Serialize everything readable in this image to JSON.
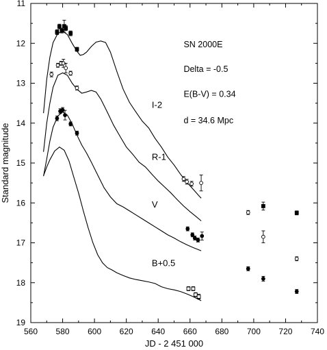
{
  "chart_data": {
    "type": "scatter",
    "title": "",
    "xlabel": "JD - 2 451 000",
    "ylabel": "Standard magnitude",
    "xlim": [
      560,
      740
    ],
    "ylim": [
      11,
      19
    ],
    "y_inverted": true,
    "x_ticks": [
      560,
      580,
      600,
      620,
      640,
      660,
      680,
      700,
      720,
      740
    ],
    "y_ticks": [
      11,
      12,
      13,
      14,
      15,
      16,
      17,
      18,
      19
    ],
    "grid": false,
    "annotations": [
      {
        "text": "SN 2000E",
        "x": 656,
        "y": 12.1
      },
      {
        "text": "Delta = -0.5",
        "x": 656,
        "y": 12.72
      },
      {
        "text": "E(B-V) = 0.34",
        "x": 656,
        "y": 13.34
      },
      {
        "text": "d = 34.6 Mpc",
        "x": 656,
        "y": 14.0
      }
    ],
    "series": [
      {
        "label": "I-2",
        "label_pos": {
          "x": 636,
          "y": 13.62
        },
        "marker": "filled-square",
        "points": [
          {
            "x": 576.5,
            "y": 11.72,
            "err": 0.06
          },
          {
            "x": 578.0,
            "y": 11.58,
            "err": 0.06
          },
          {
            "x": 579.5,
            "y": 11.68,
            "err": 0.06
          },
          {
            "x": 581.0,
            "y": 11.57,
            "err": 0.15
          },
          {
            "x": 582.0,
            "y": 11.62,
            "err": 0.06
          },
          {
            "x": 585.0,
            "y": 11.75,
            "err": 0.06
          },
          {
            "x": 589.0,
            "y": 12.15,
            "err": 0.05
          },
          {
            "x": 706.0,
            "y": 16.08,
            "err": 0.1
          },
          {
            "x": 727.0,
            "y": 16.25,
            "err": 0.05
          }
        ],
        "model": [
          [
            568,
            13.75
          ],
          [
            570,
            12.9
          ],
          [
            572,
            12.35
          ],
          [
            574,
            11.98
          ],
          [
            577,
            11.75
          ],
          [
            580,
            11.7
          ],
          [
            583,
            11.78
          ],
          [
            586,
            12.0
          ],
          [
            589,
            12.2
          ],
          [
            591,
            12.3
          ],
          [
            593,
            12.28
          ],
          [
            595,
            12.22
          ],
          [
            598,
            12.08
          ],
          [
            601,
            11.97
          ],
          [
            604,
            11.94
          ],
          [
            607,
            11.98
          ],
          [
            610,
            12.22
          ],
          [
            614,
            12.7
          ],
          [
            618,
            13.15
          ],
          [
            622,
            13.48
          ],
          [
            626,
            13.72
          ],
          [
            630,
            13.95
          ],
          [
            634,
            14.12
          ],
          [
            638,
            14.38
          ],
          [
            642,
            14.6
          ],
          [
            646,
            14.85
          ],
          [
            650,
            15.05
          ],
          [
            654,
            15.28
          ],
          [
            658,
            15.48
          ],
          [
            662,
            15.66
          ],
          [
            666,
            15.84
          ],
          [
            667,
            15.88
          ]
        ]
      },
      {
        "label": "R-1",
        "label_pos": {
          "x": 636,
          "y": 14.92
        },
        "marker": "open-circle",
        "points": [
          {
            "x": 573.0,
            "y": 12.78,
            "err": 0.06
          },
          {
            "x": 577.0,
            "y": 12.55,
            "err": 0.05
          },
          {
            "x": 579.0,
            "y": 12.5,
            "err": 0.05
          },
          {
            "x": 580.5,
            "y": 12.5,
            "err": 0.1
          },
          {
            "x": 582.0,
            "y": 12.62,
            "err": 0.12
          },
          {
            "x": 585.0,
            "y": 12.75,
            "err": 0.05
          },
          {
            "x": 589.0,
            "y": 13.12,
            "err": 0.05
          },
          {
            "x": 656.0,
            "y": 15.4,
            "err": 0.06
          },
          {
            "x": 658.0,
            "y": 15.47,
            "err": 0.06
          },
          {
            "x": 661.0,
            "y": 15.52,
            "err": 0.06
          },
          {
            "x": 667.0,
            "y": 15.5,
            "err": 0.2
          },
          {
            "x": 696.5,
            "y": 16.24,
            "err": 0.05
          },
          {
            "x": 706.0,
            "y": 16.85,
            "err": 0.15
          },
          {
            "x": 727.0,
            "y": 17.4,
            "err": 0.05
          }
        ],
        "model": [
          [
            568,
            14.72
          ],
          [
            570,
            14.0
          ],
          [
            572,
            13.5
          ],
          [
            574,
            13.1
          ],
          [
            577,
            12.8
          ],
          [
            580,
            12.74
          ],
          [
            583,
            12.8
          ],
          [
            586,
            13.0
          ],
          [
            589,
            13.15
          ],
          [
            592,
            13.25
          ],
          [
            595,
            13.22
          ],
          [
            598,
            13.18
          ],
          [
            601,
            13.22
          ],
          [
            604,
            13.4
          ],
          [
            608,
            13.72
          ],
          [
            612,
            14.05
          ],
          [
            616,
            14.33
          ],
          [
            620,
            14.6
          ],
          [
            624,
            14.78
          ],
          [
            628,
            14.98
          ],
          [
            632,
            15.1
          ],
          [
            636,
            15.28
          ],
          [
            640,
            15.45
          ],
          [
            644,
            15.6
          ],
          [
            648,
            15.75
          ],
          [
            652,
            15.92
          ],
          [
            656,
            16.08
          ],
          [
            660,
            16.22
          ],
          [
            664,
            16.35
          ],
          [
            667,
            16.45
          ]
        ]
      },
      {
        "label": "V",
        "label_pos": {
          "x": 636,
          "y": 16.12
        },
        "marker": "filled-circle",
        "points": [
          {
            "x": 576.5,
            "y": 13.88,
            "err": 0.06
          },
          {
            "x": 578.5,
            "y": 13.7,
            "err": 0.06
          },
          {
            "x": 580.0,
            "y": 13.67,
            "err": 0.06
          },
          {
            "x": 581.5,
            "y": 13.8,
            "err": 0.12
          },
          {
            "x": 585.0,
            "y": 14.02,
            "err": 0.05
          },
          {
            "x": 589.0,
            "y": 14.25,
            "err": 0.05
          },
          {
            "x": 658.5,
            "y": 16.65,
            "err": 0.05
          },
          {
            "x": 661.5,
            "y": 16.8,
            "err": 0.05
          },
          {
            "x": 663.0,
            "y": 16.88,
            "err": 0.05
          },
          {
            "x": 665.0,
            "y": 16.93,
            "err": 0.05
          },
          {
            "x": 667.5,
            "y": 16.83,
            "err": 0.1
          },
          {
            "x": 696.5,
            "y": 17.65,
            "err": 0.05
          },
          {
            "x": 706.0,
            "y": 17.9,
            "err": 0.06
          },
          {
            "x": 727.0,
            "y": 18.22,
            "err": 0.05
          }
        ],
        "model": [
          [
            568,
            15.33
          ],
          [
            570,
            14.9
          ],
          [
            572,
            14.45
          ],
          [
            574,
            14.1
          ],
          [
            577,
            13.82
          ],
          [
            580,
            13.72
          ],
          [
            583,
            13.8
          ],
          [
            586,
            14.02
          ],
          [
            589,
            14.3
          ],
          [
            592,
            14.55
          ],
          [
            595,
            14.75
          ],
          [
            598,
            14.98
          ],
          [
            602,
            15.3
          ],
          [
            606,
            15.62
          ],
          [
            610,
            15.85
          ],
          [
            614,
            16.02
          ],
          [
            618,
            16.1
          ],
          [
            622,
            16.2
          ],
          [
            626,
            16.3
          ],
          [
            630,
            16.4
          ],
          [
            634,
            16.5
          ],
          [
            638,
            16.6
          ],
          [
            642,
            16.7
          ],
          [
            646,
            16.8
          ],
          [
            650,
            16.88
          ],
          [
            654,
            16.97
          ],
          [
            658,
            17.05
          ],
          [
            662,
            17.12
          ],
          [
            667,
            17.2
          ]
        ]
      },
      {
        "label": "B+0.5",
        "label_pos": {
          "x": 636,
          "y": 17.58
        },
        "marker": "open-square",
        "points": [
          {
            "x": 659.0,
            "y": 18.15,
            "err": 0.05
          },
          {
            "x": 662.0,
            "y": 18.15,
            "err": 0.05
          },
          {
            "x": 663.5,
            "y": 18.3,
            "err": 0.05
          },
          {
            "x": 665.5,
            "y": 18.35,
            "err": 0.06
          }
        ],
        "model": [
          [
            568,
            15.32
          ],
          [
            570,
            15.1
          ],
          [
            572,
            14.92
          ],
          [
            575,
            14.7
          ],
          [
            578,
            14.6
          ],
          [
            581,
            14.68
          ],
          [
            584,
            14.95
          ],
          [
            587,
            15.35
          ],
          [
            590,
            15.75
          ],
          [
            593,
            16.2
          ],
          [
            596,
            16.62
          ],
          [
            599,
            17.0
          ],
          [
            602,
            17.3
          ],
          [
            605,
            17.5
          ],
          [
            608,
            17.62
          ],
          [
            611,
            17.68
          ],
          [
            614,
            17.75
          ],
          [
            618,
            17.82
          ],
          [
            622,
            17.88
          ],
          [
            626,
            17.92
          ],
          [
            630,
            17.95
          ],
          [
            634,
            17.98
          ],
          [
            638,
            18.02
          ],
          [
            642,
            18.1
          ],
          [
            646,
            18.15
          ],
          [
            650,
            18.18
          ],
          [
            654,
            18.22
          ],
          [
            658,
            18.28
          ],
          [
            662,
            18.35
          ],
          [
            667,
            18.45
          ]
        ]
      }
    ]
  }
}
